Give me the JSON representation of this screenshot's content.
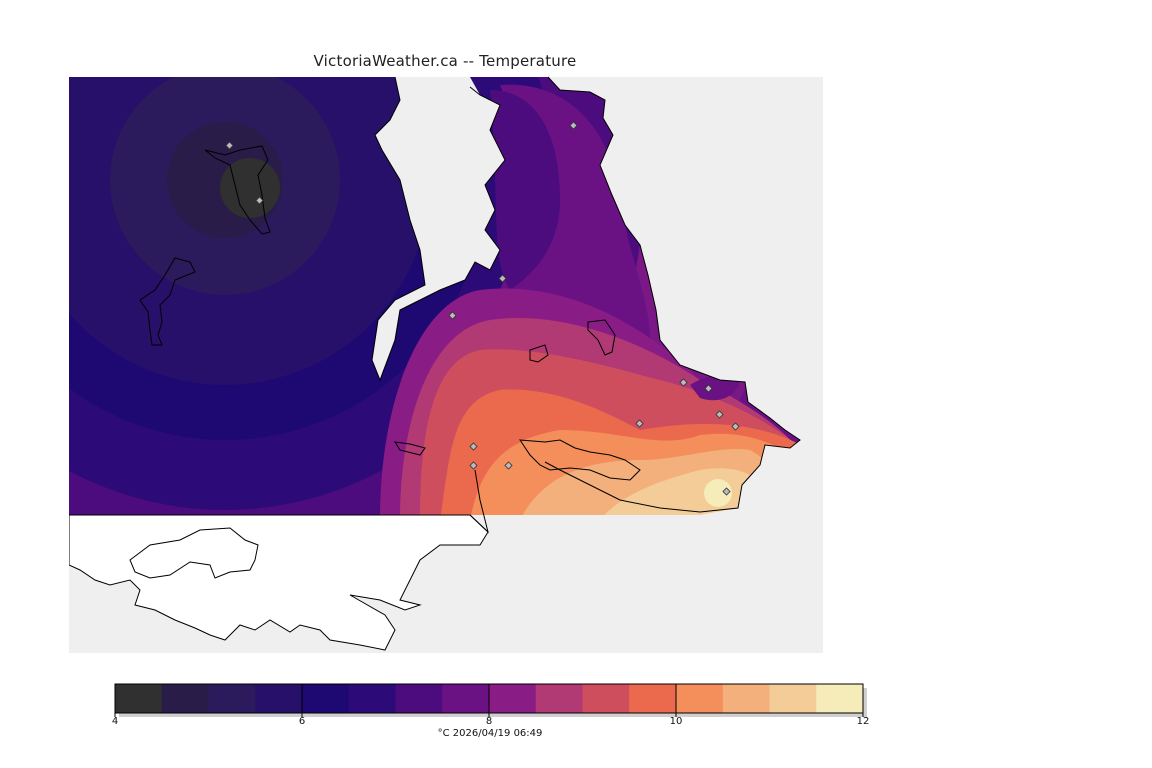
{
  "title": "VictoriaWeather.ca -- Temperature",
  "colorbar": {
    "colors": [
      "#303030",
      "#2a1c48",
      "#2b1a5c",
      "#26106a",
      "#1e0872",
      "#2c0a78",
      "#4c0c7e",
      "#6a1284",
      "#8a1c86",
      "#b13a74",
      "#cf4e5e",
      "#eb6a4e",
      "#f48e5a",
      "#f4b07c",
      "#f4cc98",
      "#f5ecba"
    ],
    "tick_labels": [
      "4",
      "6",
      "8",
      "10",
      "12"
    ],
    "min": 4,
    "max": 12
  },
  "caption": "°C  2026/04/19 06:49"
}
